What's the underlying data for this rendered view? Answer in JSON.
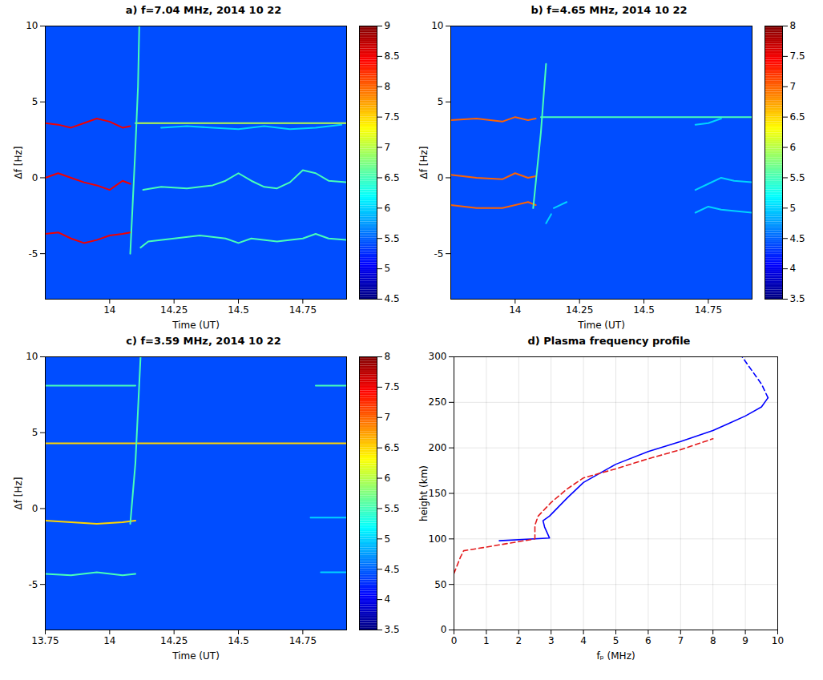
{
  "chart_data": [
    {
      "type": "spectrogram",
      "title": "a) f=7.04 MHz, 2014 10 22",
      "x_label": "Time (UT)",
      "y_label": "Δf [Hz]",
      "xlim": [
        13.75,
        14.92
      ],
      "ylim": [
        -8,
        10
      ],
      "xticks": [
        14,
        14.25,
        14.5,
        14.75
      ],
      "yticks": [
        -5,
        0,
        5,
        10
      ],
      "colorbar": {
        "range": [
          4.5,
          9
        ],
        "ticks": [
          4.5,
          5,
          5.5,
          6,
          6.5,
          7,
          7.5,
          8,
          8.5,
          9
        ]
      },
      "noise_level": 5.4,
      "series": [
        {
          "x": [
            13.75,
            13.8,
            13.85,
            13.9,
            13.95,
            14.0,
            14.05,
            14.08
          ],
          "values": [
            3.6,
            3.5,
            3.3,
            3.6,
            3.9,
            3.7,
            3.3,
            3.4
          ],
          "level": 8.5
        },
        {
          "x": [
            14.1,
            14.92
          ],
          "values": [
            3.6,
            3.6
          ],
          "level": 7
        },
        {
          "x": [
            14.2,
            14.3,
            14.4,
            14.5,
            14.6,
            14.7,
            14.8,
            14.9
          ],
          "values": [
            3.3,
            3.4,
            3.3,
            3.2,
            3.4,
            3.2,
            3.3,
            3.5
          ],
          "level": 6
        },
        {
          "x": [
            13.75,
            13.8,
            13.85,
            13.9,
            13.95,
            14.0,
            14.05,
            14.08
          ],
          "values": [
            0.0,
            0.3,
            0.0,
            -0.3,
            -0.5,
            -0.8,
            -0.2,
            -0.4
          ],
          "level": 8.5
        },
        {
          "x": [
            14.13,
            14.2,
            14.3,
            14.4,
            14.45,
            14.5,
            14.55,
            14.6,
            14.65,
            14.7,
            14.75,
            14.8,
            14.85,
            14.92
          ],
          "values": [
            -0.8,
            -0.6,
            -0.7,
            -0.5,
            -0.2,
            0.3,
            -0.2,
            -0.6,
            -0.7,
            -0.3,
            0.5,
            0.3,
            -0.2,
            -0.3
          ],
          "level": 6.5
        },
        {
          "x": [
            13.75,
            13.8,
            13.85,
            13.9,
            13.95,
            14.0,
            14.05,
            14.08
          ],
          "values": [
            -3.7,
            -3.6,
            -4.0,
            -4.3,
            -4.1,
            -3.8,
            -3.7,
            -3.6
          ],
          "level": 8.5
        },
        {
          "x": [
            14.12,
            14.15,
            14.25,
            14.35,
            14.45,
            14.5,
            14.55,
            14.65,
            14.75,
            14.8,
            14.85,
            14.92
          ],
          "values": [
            -4.6,
            -4.2,
            -4.0,
            -3.8,
            -4.0,
            -4.3,
            -4.0,
            -4.2,
            -4.0,
            -3.7,
            -4.0,
            -4.1
          ],
          "level": 6.5
        },
        {
          "x": [
            14.08,
            14.1,
            14.11,
            14.115
          ],
          "values": [
            -5,
            2,
            6,
            10
          ],
          "level": 6.5
        }
      ]
    },
    {
      "type": "spectrogram",
      "title": "b) f=4.65 MHz, 2014 10 22",
      "x_label": "Time (UT)",
      "y_label": "Δf [Hz]",
      "xlim": [
        13.75,
        14.92
      ],
      "ylim": [
        -8,
        10
      ],
      "xticks": [
        14,
        14.25,
        14.5,
        14.75
      ],
      "yticks": [
        -5,
        0,
        5,
        10
      ],
      "colorbar": {
        "range": [
          3.5,
          8
        ],
        "ticks": [
          3.5,
          4,
          4.5,
          5,
          5.5,
          6,
          6.5,
          7,
          7.5,
          8
        ]
      },
      "noise_level": 4.4,
      "series": [
        {
          "x": [
            13.75,
            13.85,
            13.95,
            14.0,
            14.05,
            14.08
          ],
          "values": [
            3.8,
            3.9,
            3.7,
            4.0,
            3.8,
            3.9
          ],
          "level": 7
        },
        {
          "x": [
            14.1,
            14.92
          ],
          "values": [
            4.0,
            4.0
          ],
          "level": 5.5
        },
        {
          "x": [
            14.7,
            14.75,
            14.8
          ],
          "values": [
            3.5,
            3.6,
            3.9
          ],
          "level": 5
        },
        {
          "x": [
            13.75,
            13.85,
            13.95,
            14.0,
            14.05,
            14.08
          ],
          "values": [
            0.2,
            0.0,
            -0.1,
            0.3,
            0.0,
            0.1
          ],
          "level": 7
        },
        {
          "x": [
            14.12,
            14.14
          ],
          "values": [
            -3.0,
            -2.4
          ],
          "level": 5
        },
        {
          "x": [
            14.7,
            14.75,
            14.8,
            14.85,
            14.92
          ],
          "values": [
            -0.8,
            -0.4,
            0.0,
            -0.2,
            -0.3
          ],
          "level": 5
        },
        {
          "x": [
            13.75,
            13.85,
            13.95,
            14.05,
            14.08
          ],
          "values": [
            -1.8,
            -2.0,
            -2.0,
            -1.6,
            -1.8
          ],
          "level": 7
        },
        {
          "x": [
            14.15,
            14.2
          ],
          "values": [
            -2.0,
            -1.6
          ],
          "level": 5
        },
        {
          "x": [
            14.7,
            14.75,
            14.8,
            14.92
          ],
          "values": [
            -2.3,
            -1.9,
            -2.1,
            -2.3
          ],
          "level": 5
        },
        {
          "x": [
            14.07,
            14.1,
            14.12
          ],
          "values": [
            -2,
            3,
            7.5
          ],
          "level": 5.5
        }
      ]
    },
    {
      "type": "spectrogram",
      "title": "c) f=3.59 MHz, 2014 10 22",
      "x_label": "Time (UT)",
      "y_label": "Δf [Hz]",
      "xlim": [
        13.75,
        14.92
      ],
      "ylim": [
        -8,
        10
      ],
      "xticks": [
        13.75,
        14,
        14.25,
        14.5,
        14.75
      ],
      "yticks": [
        -5,
        0,
        5,
        10
      ],
      "colorbar": {
        "range": [
          3.5,
          8
        ],
        "ticks": [
          3.5,
          4,
          4.5,
          5,
          5.5,
          6,
          6.5,
          7,
          7.5,
          8
        ]
      },
      "noise_level": 4.4,
      "series": [
        {
          "x": [
            13.75,
            14.1
          ],
          "values": [
            8.1,
            8.1
          ],
          "level": 5.5
        },
        {
          "x": [
            14.8,
            14.92
          ],
          "values": [
            8.1,
            8.1
          ],
          "level": 5.5
        },
        {
          "x": [
            13.75,
            14.92
          ],
          "values": [
            4.3,
            4.3
          ],
          "level": 6.5
        },
        {
          "x": [
            13.75,
            13.85,
            13.95,
            14.05,
            14.1
          ],
          "values": [
            -0.8,
            -0.9,
            -1.0,
            -0.9,
            -0.8
          ],
          "level": 6.5
        },
        {
          "x": [
            14.78,
            14.92
          ],
          "values": [
            -0.6,
            -0.6
          ],
          "level": 5
        },
        {
          "x": [
            13.75,
            13.85,
            13.95,
            14.05,
            14.1
          ],
          "values": [
            -4.3,
            -4.4,
            -4.2,
            -4.4,
            -4.3
          ],
          "level": 5.5
        },
        {
          "x": [
            14.82,
            14.92
          ],
          "values": [
            -4.2,
            -4.2
          ],
          "level": 5
        },
        {
          "x": [
            14.08,
            14.1,
            14.12
          ],
          "values": [
            -1,
            3,
            10
          ],
          "level": 5.5
        }
      ]
    },
    {
      "type": "line",
      "title": "d) Plasma frequency profile",
      "x_label": "fₚ (MHz)",
      "y_label": "height (km)",
      "xlim": [
        0,
        10
      ],
      "ylim": [
        0,
        300
      ],
      "xticks": [
        0,
        1,
        2,
        3,
        4,
        5,
        6,
        7,
        8,
        9,
        10
      ],
      "yticks": [
        0,
        50,
        100,
        150,
        200,
        250,
        300
      ],
      "grid": true,
      "series": [
        {
          "color": "#0000ff",
          "line_style": "solid",
          "x": [
            1.4,
            2.95,
            2.8,
            2.75,
            2.95,
            3.5,
            4,
            5,
            6,
            7,
            8,
            8.5,
            9,
            9.5,
            9.7
          ],
          "values": [
            98,
            101,
            113,
            120,
            125,
            145,
            162,
            182,
            196,
            207,
            219,
            227,
            235,
            245,
            255
          ]
        },
        {
          "color": "#0000ff",
          "line_style": "dashed",
          "x": [
            9.7,
            9.5,
            9.2,
            8.9
          ],
          "values": [
            255,
            270,
            285,
            300
          ]
        },
        {
          "color": "#e31a1c",
          "line_style": "dashed",
          "x": [
            0,
            0.2,
            0.3,
            1,
            2,
            2.5,
            2.5,
            2.6,
            3,
            3.5,
            4,
            5,
            6,
            7,
            8
          ],
          "values": [
            62,
            80,
            87,
            91,
            97,
            100,
            115,
            125,
            140,
            155,
            167,
            177,
            188,
            198,
            210
          ]
        }
      ]
    }
  ]
}
